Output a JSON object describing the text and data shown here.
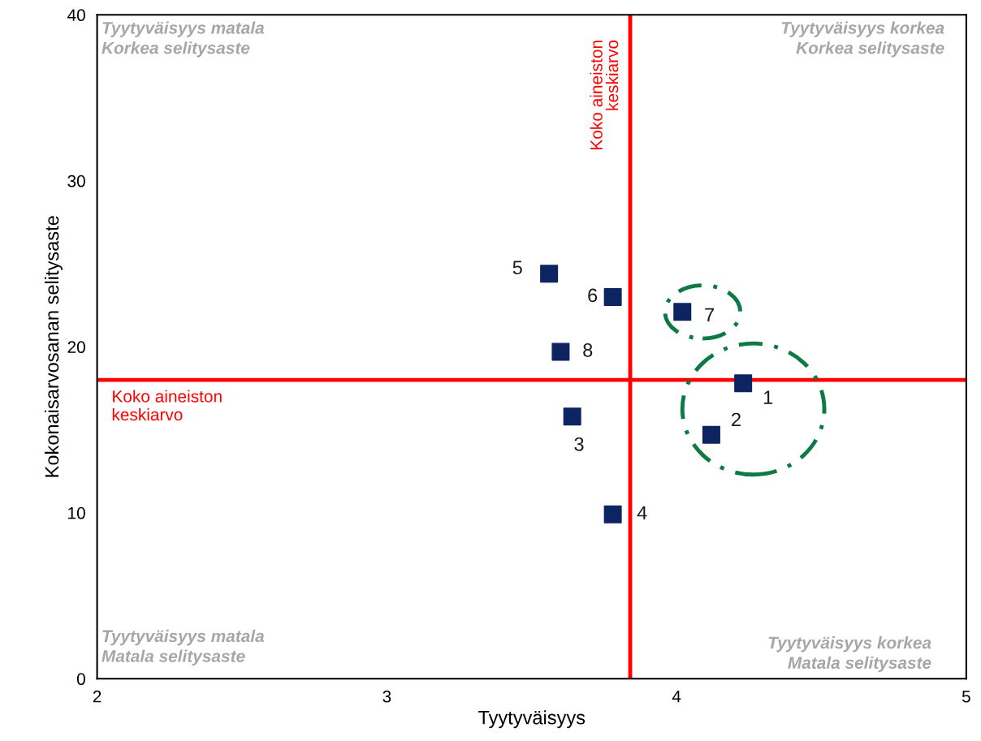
{
  "chart_data": {
    "type": "scatter",
    "xlabel": "Tyytyväisyys",
    "ylabel": "Kokonaisarvosanan selitysaste",
    "x": [
      4.23,
      4.12,
      3.64,
      3.78,
      3.56,
      3.78,
      4.02,
      3.6
    ],
    "series": [
      {
        "color": "#0c2461",
        "values": [
          17.8,
          14.7,
          15.8,
          9.9,
          24.4,
          23.0,
          22.1,
          19.7
        ]
      }
    ],
    "xlim": [
      2,
      5
    ],
    "xticks": [
      2,
      3,
      4,
      5
    ],
    "ylim": [
      0,
      40
    ],
    "yticks": [
      0,
      10,
      20,
      30,
      40
    ],
    "marker": "square",
    "grid": false,
    "legend": false,
    "ref_lines": [
      {
        "axis": "x",
        "value": 3.84,
        "label": "Koko aineiston\nkeskiarvo",
        "color": "#ff0000"
      },
      {
        "axis": "y",
        "value": 18.0,
        "label": "Koko aineiston\nkeskiarvo",
        "color": "#ff0000"
      }
    ],
    "annotations": [
      {
        "text": "1",
        "x": 4.23,
        "y": 17.8
      },
      {
        "text": "2",
        "x": 4.12,
        "y": 14.7
      },
      {
        "text": "3",
        "x": 3.64,
        "y": 15.8
      },
      {
        "text": "4",
        "x": 3.78,
        "y": 9.9
      },
      {
        "text": "5",
        "x": 3.56,
        "y": 24.4
      },
      {
        "text": "6",
        "x": 3.78,
        "y": 23.0
      },
      {
        "text": "7",
        "x": 4.02,
        "y": 22.1
      },
      {
        "text": "8",
        "x": 3.6,
        "y": 19.7
      },
      "Tyytyväisyys matala\nKorkea selitysaste",
      "Tyytyväisyys korkea\nKorkea selitysaste",
      "Tyytyväisyys matala\nMatala selitysaste",
      "Tyytyväisyys korkea\nMatala selitysaste"
    ]
  }
}
